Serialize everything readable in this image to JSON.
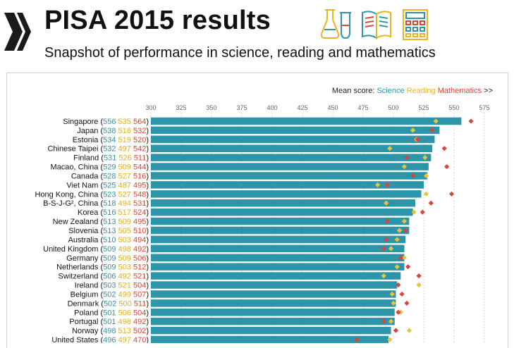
{
  "header": {
    "title": "PISA 2015 results",
    "subtitle": "Snapshot of performance in science, reading and mathematics"
  },
  "legend": {
    "prefix": "Mean score:",
    "science": "Science",
    "reading": "Reading",
    "mathematics": "Mathematics",
    "suffix": ">>"
  },
  "colors": {
    "science": "#2d95aa",
    "reading": "#e8c43a",
    "mathematics": "#d6473a",
    "logo": "#1a1a1a"
  },
  "icons": [
    "oecd-logo-icon",
    "flask-icon",
    "book-icon",
    "calculator-icon"
  ],
  "chart_data": {
    "type": "bar",
    "title": "PISA 2015 results",
    "xlim": [
      300,
      575
    ],
    "ticks": [
      300,
      325,
      350,
      375,
      400,
      425,
      450,
      475,
      500,
      525,
      550,
      575
    ],
    "series": [
      {
        "name": "Science",
        "mark": "bar"
      },
      {
        "name": "Reading",
        "mark": "diamond"
      },
      {
        "name": "Mathematics",
        "mark": "diamond"
      }
    ],
    "countries": [
      {
        "name": "Singapore",
        "sci": 556,
        "read": 535,
        "math": 564
      },
      {
        "name": "Japan",
        "sci": 538,
        "read": 516,
        "math": 532
      },
      {
        "name": "Estonia",
        "sci": 534,
        "read": 519,
        "math": 520
      },
      {
        "name": "Chinese Taipei",
        "sci": 532,
        "read": 497,
        "math": 542
      },
      {
        "name": "Finland",
        "sci": 531,
        "read": 526,
        "math": 511
      },
      {
        "name": "Macao, China",
        "sci": 529,
        "read": 509,
        "math": 544
      },
      {
        "name": "Canada",
        "sci": 528,
        "read": 527,
        "math": 516
      },
      {
        "name": "Viet Nam",
        "sci": 525,
        "read": 487,
        "math": 495
      },
      {
        "name": "Hong Kong, China",
        "sci": 523,
        "read": 527,
        "math": 548
      },
      {
        "name": "B-S-J-G², China",
        "sci": 518,
        "read": 494,
        "math": 531
      },
      {
        "name": "Korea",
        "sci": 516,
        "read": 517,
        "math": 524
      },
      {
        "name": "New Zealand",
        "sci": 513,
        "read": 509,
        "math": 495
      },
      {
        "name": "Slovenia",
        "sci": 513,
        "read": 505,
        "math": 510
      },
      {
        "name": "Australia",
        "sci": 510,
        "read": 503,
        "math": 494
      },
      {
        "name": "United Kingdom",
        "sci": 509,
        "read": 498,
        "math": 492
      },
      {
        "name": "Germany",
        "sci": 509,
        "read": 509,
        "math": 506
      },
      {
        "name": "Netherlands",
        "sci": 509,
        "read": 503,
        "math": 512
      },
      {
        "name": "Switzerland",
        "sci": 506,
        "read": 492,
        "math": 521
      },
      {
        "name": "Ireland",
        "sci": 503,
        "read": 521,
        "math": 504
      },
      {
        "name": "Belgium",
        "sci": 502,
        "read": 499,
        "math": 507
      },
      {
        "name": "Denmark",
        "sci": 502,
        "read": 500,
        "math": 511
      },
      {
        "name": "Poland",
        "sci": 501,
        "read": 506,
        "math": 504
      },
      {
        "name": "Portugal",
        "sci": 501,
        "read": 498,
        "math": 492
      },
      {
        "name": "Norway",
        "sci": 498,
        "read": 513,
        "math": 502
      },
      {
        "name": "United States",
        "sci": 496,
        "read": 497,
        "math": 470
      }
    ]
  }
}
